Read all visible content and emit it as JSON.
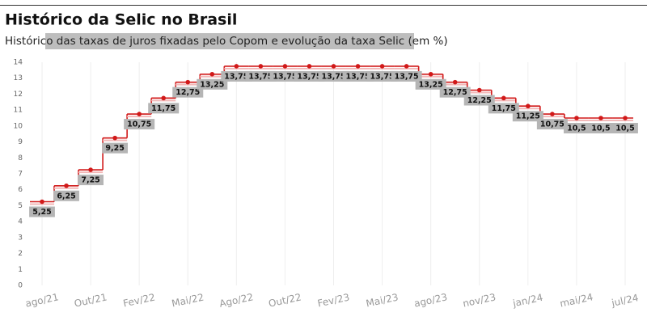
{
  "chart_data": {
    "type": "step",
    "title": "Histórico da Selic no Brasil",
    "subtitle": "Histórico das taxas de juros fixadas pelo Copom e evolução da taxa Selic (em %)",
    "categories": [
      "ago/21",
      null,
      "Out/21",
      null,
      "Fev/22",
      null,
      "Mai/22",
      null,
      "Ago/22",
      null,
      "Out/22",
      null,
      "Fev/23",
      null,
      "Mai/23",
      null,
      "ago/23",
      null,
      "nov/23",
      null,
      "jan/24",
      null,
      "mai/24",
      null,
      "jul/24"
    ],
    "series": [
      {
        "name": "Selic",
        "color": "#d11919",
        "values": [
          5.25,
          6.25,
          7.25,
          9.25,
          10.75,
          11.75,
          12.75,
          13.25,
          13.75,
          13.75,
          13.75,
          13.75,
          13.75,
          13.75,
          13.75,
          13.75,
          13.25,
          12.75,
          12.25,
          11.75,
          11.25,
          10.75,
          10.5,
          10.5,
          10.5
        ],
        "value_labels": [
          "5,25",
          "6,25",
          "7,25",
          "9,25",
          "10,75",
          "11,75",
          "12,75",
          "13,25",
          "13,75",
          "13,75",
          "13,75",
          "13,75",
          "13,75",
          "13,75",
          "13,75",
          "13,75",
          "13,25",
          "12,75",
          "12,25",
          "11,75",
          "11,25",
          "10,75",
          "10,5",
          "10,5",
          "10,5"
        ]
      }
    ],
    "ylim": [
      0,
      14
    ],
    "yticks": [
      0,
      1,
      2,
      3,
      4,
      5,
      6,
      7,
      8,
      9,
      10,
      11,
      12,
      13,
      14
    ],
    "grid": true
  }
}
